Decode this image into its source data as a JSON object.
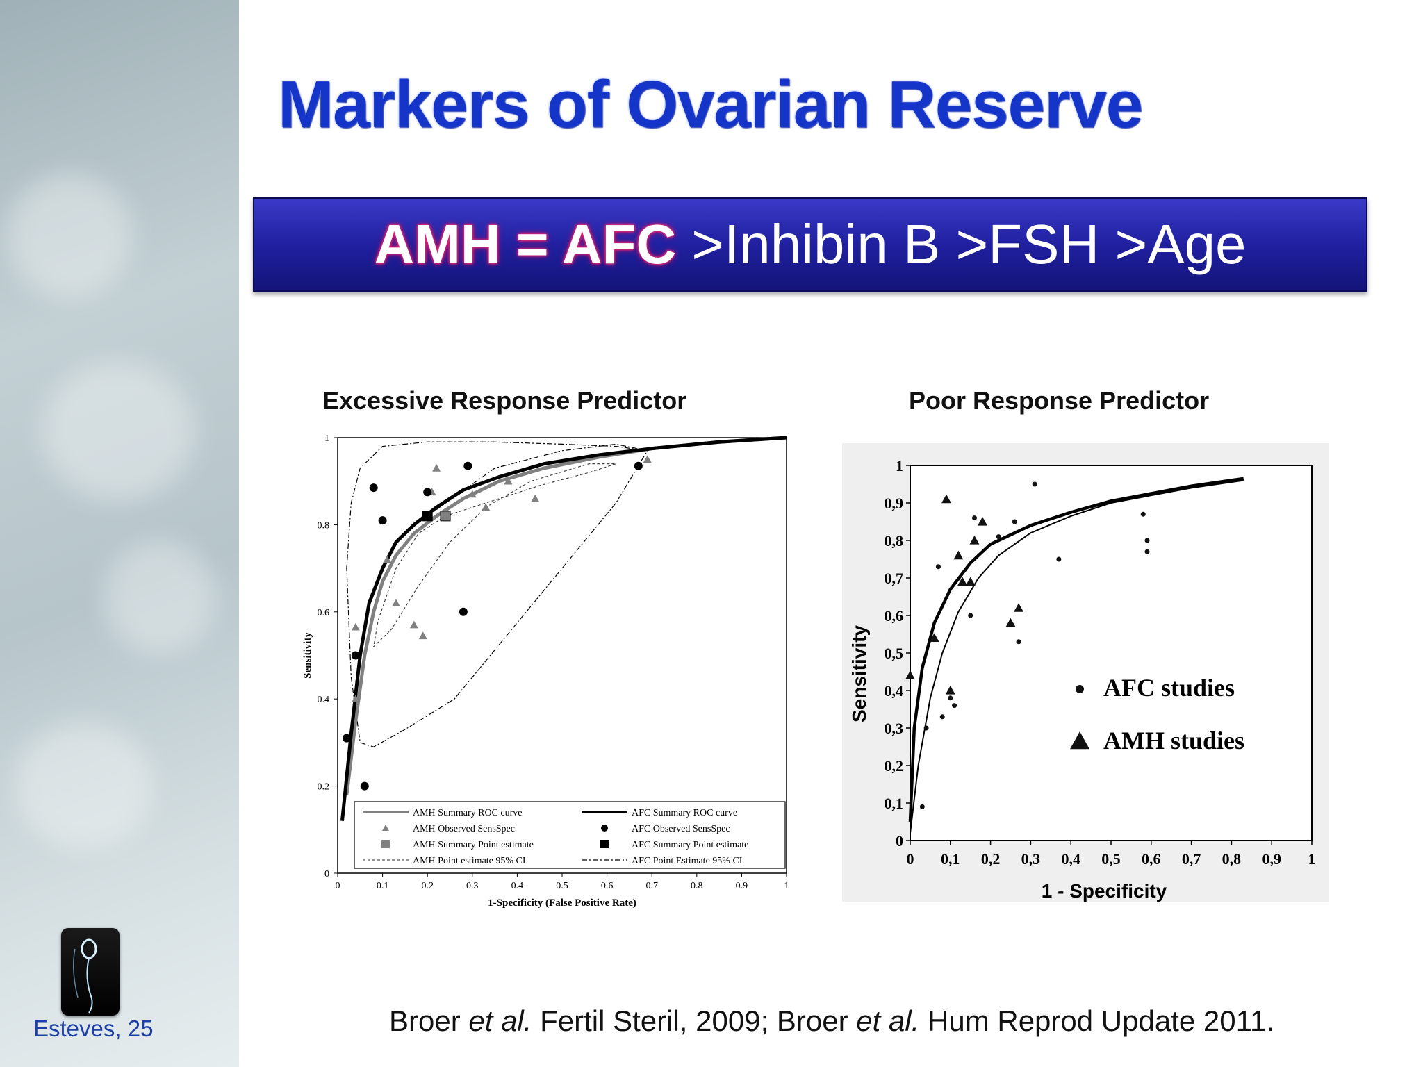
{
  "slide": {
    "title": "Markers of Ovarian Reserve",
    "banner_bold": "AMH = AFC",
    "banner_rest": ">Inhibin B >FSH >Age",
    "footer_left": "Esteves, 25",
    "citation": {
      "a1": "Broer ",
      "a1_em": "et al.",
      "a1_rest": " Fertil Steril, 2009; Broer ",
      "a2_em": "et al.",
      "a2_rest": " Hum Reprod Update 2011."
    },
    "colors": {
      "title": "#1535c8",
      "banner": "#2424a8",
      "banner_glow": "#ff2a80",
      "footer": "#1f3fa8"
    }
  },
  "chart_data": [
    {
      "type": "scatter",
      "title": "Excessive Response Predictor",
      "xlabel": "1-Specificity (False Positive Rate)",
      "ylabel": "Sensitivity",
      "xlim": [
        0,
        1
      ],
      "ylim": [
        0,
        1
      ],
      "xticks": [
        "0",
        "0.1",
        "0.2",
        "0.3",
        "0.4",
        "0.5",
        "0.6",
        "0.7",
        "0.8",
        "0.9",
        "1"
      ],
      "yticks": [
        "0",
        "0.2",
        "0.4",
        "0.6",
        "0.8",
        "1"
      ],
      "legend_position": "bottom",
      "series": [
        {
          "name": "AMH Summary ROC curve",
          "kind": "curve",
          "color": "#808080",
          "x": [
            0.02,
            0.04,
            0.06,
            0.08,
            0.1,
            0.13,
            0.17,
            0.22,
            0.28,
            0.36,
            0.46,
            0.58,
            0.7,
            0.85,
            1.0
          ],
          "y": [
            0.18,
            0.35,
            0.5,
            0.6,
            0.67,
            0.73,
            0.78,
            0.82,
            0.86,
            0.9,
            0.93,
            0.955,
            0.975,
            0.99,
            1.0
          ]
        },
        {
          "name": "AMH Observed SensSpec",
          "kind": "triangle",
          "color": "#808080",
          "x": [
            0.04,
            0.04,
            0.11,
            0.13,
            0.17,
            0.19,
            0.21,
            0.22,
            0.3,
            0.33,
            0.38,
            0.44,
            0.69
          ],
          "y": [
            0.4,
            0.565,
            0.72,
            0.62,
            0.57,
            0.545,
            0.875,
            0.93,
            0.87,
            0.84,
            0.9,
            0.86,
            0.95
          ]
        },
        {
          "name": "AMH Summary Point estimate",
          "kind": "square",
          "color": "#808080",
          "x": [
            0.24
          ],
          "y": [
            0.82
          ]
        },
        {
          "name": "AMH Point estimate 95% CI",
          "kind": "ci",
          "color": "#555555",
          "x": [
            0.24,
            0.33,
            0.45,
            0.56,
            0.62,
            0.56,
            0.43,
            0.33,
            0.25,
            0.18,
            0.12,
            0.08,
            0.09,
            0.13,
            0.18,
            0.24
          ],
          "y": [
            0.82,
            0.85,
            0.89,
            0.92,
            0.94,
            0.94,
            0.9,
            0.84,
            0.76,
            0.66,
            0.56,
            0.52,
            0.58,
            0.7,
            0.78,
            0.82
          ]
        },
        {
          "name": "AFC Summary ROC curve",
          "kind": "curve",
          "color": "#000000",
          "x": [
            0.01,
            0.03,
            0.05,
            0.07,
            0.1,
            0.13,
            0.17,
            0.22,
            0.28,
            0.36,
            0.46,
            0.58,
            0.7,
            0.85,
            1.0
          ],
          "y": [
            0.12,
            0.32,
            0.5,
            0.62,
            0.7,
            0.76,
            0.8,
            0.84,
            0.88,
            0.91,
            0.94,
            0.96,
            0.975,
            0.99,
            1.0
          ]
        },
        {
          "name": "AFC Observed SensSpec",
          "kind": "circle",
          "color": "#000000",
          "x": [
            0.02,
            0.04,
            0.06,
            0.08,
            0.1,
            0.2,
            0.28,
            0.29,
            0.67
          ],
          "y": [
            0.31,
            0.5,
            0.2,
            0.885,
            0.81,
            0.875,
            0.6,
            0.935,
            0.935
          ]
        },
        {
          "name": "AFC Summary Point estimate",
          "kind": "square",
          "color": "#000000",
          "x": [
            0.2
          ],
          "y": [
            0.82
          ]
        },
        {
          "name": "AFC Point Estimate 95% CI",
          "kind": "ci",
          "color": "#000000",
          "x": [
            0.2,
            0.35,
            0.5,
            0.62,
            0.69,
            0.62,
            0.5,
            0.38,
            0.26,
            0.15,
            0.08,
            0.05,
            0.03,
            0.02,
            0.03,
            0.05,
            0.1,
            0.2,
            0.35,
            0.5,
            0.62,
            0.69
          ],
          "y": [
            0.82,
            0.93,
            0.97,
            0.985,
            0.97,
            0.85,
            0.7,
            0.55,
            0.4,
            0.33,
            0.29,
            0.3,
            0.45,
            0.7,
            0.85,
            0.93,
            0.98,
            0.99,
            0.99,
            0.985,
            0.98,
            0.97
          ]
        }
      ]
    },
    {
      "type": "scatter",
      "title": "Poor Response Predictor",
      "xlabel": "1 - Specificity",
      "ylabel": "Sensitivity",
      "xlim": [
        0,
        1
      ],
      "ylim": [
        0,
        1
      ],
      "xticks": [
        "0",
        "0,1",
        "0,2",
        "0,3",
        "0,4",
        "0,5",
        "0,6",
        "0,7",
        "0,8",
        "0,9",
        "1"
      ],
      "yticks": [
        "0",
        "0,1",
        "0,2",
        "0,3",
        "0,4",
        "0,5",
        "0,6",
        "0,7",
        "0,8",
        "0,9",
        "1"
      ],
      "legend_position": "center-right",
      "series": [
        {
          "name": "AFC studies",
          "kind": "dot",
          "color": "#111111",
          "x": [
            0.03,
            0.04,
            0.07,
            0.08,
            0.1,
            0.11,
            0.15,
            0.16,
            0.22,
            0.26,
            0.27,
            0.31,
            0.37,
            0.58,
            0.59,
            0.59
          ],
          "y": [
            0.09,
            0.3,
            0.73,
            0.33,
            0.38,
            0.36,
            0.6,
            0.86,
            0.81,
            0.85,
            0.53,
            0.95,
            0.75,
            0.87,
            0.8,
            0.77
          ]
        },
        {
          "name": "AMH studies",
          "kind": "triangle",
          "color": "#111111",
          "x": [
            0.0,
            0.06,
            0.09,
            0.1,
            0.12,
            0.13,
            0.15,
            0.16,
            0.18,
            0.25,
            0.27
          ],
          "y": [
            0.44,
            0.54,
            0.91,
            0.4,
            0.76,
            0.69,
            0.69,
            0.8,
            0.85,
            0.58,
            0.62
          ]
        },
        {
          "name": "",
          "kind": "curve",
          "color": "#000000",
          "x": [
            0.0,
            0.01,
            0.03,
            0.06,
            0.1,
            0.15,
            0.2,
            0.3,
            0.4,
            0.5,
            0.6,
            0.7,
            0.83
          ],
          "y": [
            0.05,
            0.3,
            0.46,
            0.58,
            0.67,
            0.74,
            0.79,
            0.84,
            0.875,
            0.905,
            0.925,
            0.945,
            0.965
          ]
        },
        {
          "name": "",
          "kind": "curve-thin",
          "color": "#000000",
          "x": [
            0.0,
            0.02,
            0.05,
            0.08,
            0.12,
            0.17,
            0.22,
            0.3,
            0.4,
            0.5,
            0.6,
            0.7,
            0.83
          ],
          "y": [
            0.02,
            0.2,
            0.38,
            0.5,
            0.61,
            0.7,
            0.76,
            0.82,
            0.865,
            0.9,
            0.92,
            0.94,
            0.96
          ]
        }
      ]
    }
  ]
}
